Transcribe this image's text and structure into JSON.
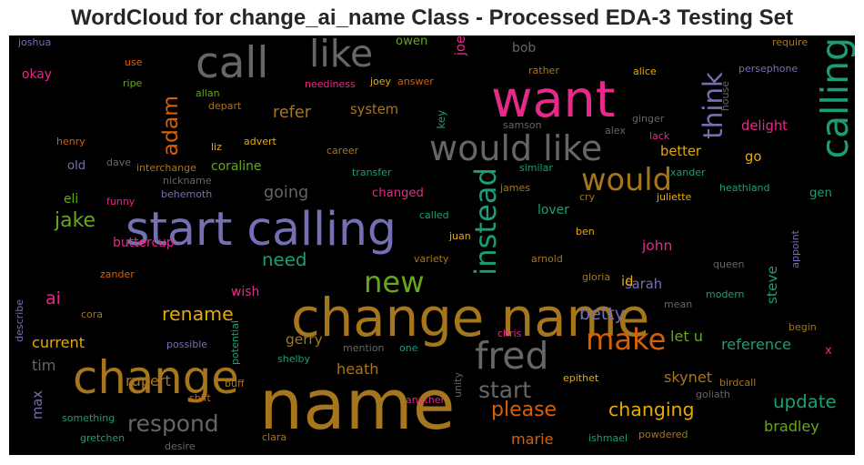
{
  "chart_data": {
    "type": "wordcloud",
    "title": "WordCloud for change_ai_name Class - Processed EDA-3 Testing Set",
    "words": [
      {
        "text": "name",
        "weight": 100,
        "color": "#a6761d",
        "vertical": false
      },
      {
        "text": "change name",
        "weight": 75,
        "color": "#a6761d",
        "vertical": false
      },
      {
        "text": "want",
        "weight": 72,
        "color": "#e7298a",
        "vertical": false
      },
      {
        "text": "start calling",
        "weight": 65,
        "color": "#7570b3",
        "vertical": false
      },
      {
        "text": "change",
        "weight": 64,
        "color": "#a6761d",
        "vertical": false
      },
      {
        "text": "call",
        "weight": 60,
        "color": "#666666",
        "vertical": false
      },
      {
        "text": "fred",
        "weight": 52,
        "color": "#666666",
        "vertical": false
      },
      {
        "text": "like",
        "weight": 52,
        "color": "#666666",
        "vertical": false
      },
      {
        "text": "calling",
        "weight": 52,
        "color": "#1b9e77",
        "vertical": true
      },
      {
        "text": "would like",
        "weight": 48,
        "color": "#666666",
        "vertical": false
      },
      {
        "text": "would",
        "weight": 42,
        "color": "#a6761d",
        "vertical": false
      },
      {
        "text": "make",
        "weight": 40,
        "color": "#d95f02",
        "vertical": false
      },
      {
        "text": "new",
        "weight": 40,
        "color": "#66a61e",
        "vertical": false
      },
      {
        "text": "instead",
        "weight": 40,
        "color": "#1b9e77",
        "vertical": true
      },
      {
        "text": "think",
        "weight": 36,
        "color": "#7570b3",
        "vertical": true
      },
      {
        "text": "respond",
        "weight": 30,
        "color": "#666666",
        "vertical": false
      },
      {
        "text": "start",
        "weight": 30,
        "color": "#666666",
        "vertical": false
      },
      {
        "text": "adam",
        "weight": 28,
        "color": "#d95f02",
        "vertical": true
      },
      {
        "text": "please",
        "weight": 26,
        "color": "#d95f02",
        "vertical": false
      },
      {
        "text": "jake",
        "weight": 26,
        "color": "#66a61e",
        "vertical": false
      },
      {
        "text": "changing",
        "weight": 24,
        "color": "#e6ab02",
        "vertical": false
      },
      {
        "text": "rename",
        "weight": 24,
        "color": "#e6ab02",
        "vertical": false
      },
      {
        "text": "update",
        "weight": 23,
        "color": "#1b9e77",
        "vertical": false
      },
      {
        "text": "need",
        "weight": 23,
        "color": "#1b9e77",
        "vertical": false
      },
      {
        "text": "betty",
        "weight": 22,
        "color": "#7570b3",
        "vertical": false
      },
      {
        "text": "ai",
        "weight": 22,
        "color": "#e7298a",
        "vertical": false
      },
      {
        "text": "refer",
        "weight": 20,
        "color": "#a6761d",
        "vertical": false
      },
      {
        "text": "going",
        "weight": 20,
        "color": "#666666",
        "vertical": false
      },
      {
        "text": "heath",
        "weight": 18,
        "color": "#a6761d",
        "vertical": false
      },
      {
        "text": "bradley",
        "weight": 18,
        "color": "#66a61e",
        "vertical": false
      },
      {
        "text": "reference",
        "weight": 18,
        "color": "#1b9e77",
        "vertical": false
      },
      {
        "text": "skynet",
        "weight": 18,
        "color": "#a6761d",
        "vertical": false
      },
      {
        "text": "rupert",
        "weight": 18,
        "color": "#a6761d",
        "vertical": false
      },
      {
        "text": "marie",
        "weight": 18,
        "color": "#d95f02",
        "vertical": false
      },
      {
        "text": "let u",
        "weight": 18,
        "color": "#66a61e",
        "vertical": false
      },
      {
        "text": "tim",
        "weight": 18,
        "color": "#666666",
        "vertical": false
      },
      {
        "text": "current",
        "weight": 18,
        "color": "#e6ab02",
        "vertical": false
      },
      {
        "text": "gerry",
        "weight": 17,
        "color": "#a6761d",
        "vertical": false
      },
      {
        "text": "steve",
        "weight": 17,
        "color": "#1b9e77",
        "vertical": true
      },
      {
        "text": "john",
        "weight": 17,
        "color": "#e7298a",
        "vertical": false
      },
      {
        "text": "sarah",
        "weight": 16,
        "color": "#7570b3",
        "vertical": false
      },
      {
        "text": "joe",
        "weight": 16,
        "color": "#e7298a",
        "vertical": true
      },
      {
        "text": "system",
        "weight": 16,
        "color": "#a6761d",
        "vertical": false
      },
      {
        "text": "delight",
        "weight": 16,
        "color": "#e7298a",
        "vertical": false
      },
      {
        "text": "better",
        "weight": 16,
        "color": "#e6ab02",
        "vertical": false
      },
      {
        "text": "id",
        "weight": 16,
        "color": "#e6ab02",
        "vertical": false
      },
      {
        "text": "go",
        "weight": 16,
        "color": "#e6ab02",
        "vertical": false
      },
      {
        "text": "coraline",
        "weight": 15,
        "color": "#66a61e",
        "vertical": false
      },
      {
        "text": "max",
        "weight": 16,
        "color": "#7570b3",
        "vertical": true
      },
      {
        "text": "buttercup",
        "weight": 15,
        "color": "#e7298a",
        "vertical": false
      },
      {
        "text": "wish",
        "weight": 15,
        "color": "#e7298a",
        "vertical": false
      },
      {
        "text": "lover",
        "weight": 15,
        "color": "#1b9e77",
        "vertical": false
      },
      {
        "text": "eli",
        "weight": 15,
        "color": "#66a61e",
        "vertical": false
      },
      {
        "text": "okay",
        "weight": 15,
        "color": "#e7298a",
        "vertical": false
      },
      {
        "text": "bob",
        "weight": 15,
        "color": "#666666",
        "vertical": false
      },
      {
        "text": "old",
        "weight": 14,
        "color": "#7570b3",
        "vertical": false
      },
      {
        "text": "owen",
        "weight": 14,
        "color": "#66a61e",
        "vertical": false
      },
      {
        "text": "changed",
        "weight": 14,
        "color": "#e7298a",
        "vertical": false
      },
      {
        "text": "gen",
        "weight": 14,
        "color": "#1b9e77",
        "vertical": false
      },
      {
        "text": "key",
        "weight": 12,
        "color": "#1b9e77",
        "vertical": true
      },
      {
        "text": "x",
        "weight": 14,
        "color": "#e7298a",
        "vertical": false
      },
      {
        "text": "joshua",
        "weight": 11,
        "color": "#7570b3",
        "vertical": false
      },
      {
        "text": "use",
        "weight": 11,
        "color": "#d95f02",
        "vertical": false
      },
      {
        "text": "ripe",
        "weight": 11,
        "color": "#66a61e",
        "vertical": false
      },
      {
        "text": "allan",
        "weight": 11,
        "color": "#66a61e",
        "vertical": false
      },
      {
        "text": "depart",
        "weight": 11,
        "color": "#a6761d",
        "vertical": false
      },
      {
        "text": "neediness",
        "weight": 11,
        "color": "#e7298a",
        "vertical": false
      },
      {
        "text": "joey",
        "weight": 11,
        "color": "#e6ab02",
        "vertical": false
      },
      {
        "text": "answer",
        "weight": 11,
        "color": "#d95f02",
        "vertical": false
      },
      {
        "text": "rather",
        "weight": 11,
        "color": "#a6761d",
        "vertical": false
      },
      {
        "text": "alice",
        "weight": 11,
        "color": "#e6ab02",
        "vertical": false
      },
      {
        "text": "require",
        "weight": 11,
        "color": "#a6761d",
        "vertical": false
      },
      {
        "text": "persephone",
        "weight": 11,
        "color": "#7570b3",
        "vertical": false
      },
      {
        "text": "house",
        "weight": 11,
        "color": "#666666",
        "vertical": true
      },
      {
        "text": "henry",
        "weight": 11,
        "color": "#d95f02",
        "vertical": false
      },
      {
        "text": "liz",
        "weight": 11,
        "color": "#e6ab02",
        "vertical": false
      },
      {
        "text": "advert",
        "weight": 11,
        "color": "#e6ab02",
        "vertical": false
      },
      {
        "text": "career",
        "weight": 11,
        "color": "#a6761d",
        "vertical": false
      },
      {
        "text": "samson",
        "weight": 11,
        "color": "#666666",
        "vertical": false
      },
      {
        "text": "ginger",
        "weight": 11,
        "color": "#666666",
        "vertical": false
      },
      {
        "text": "alex",
        "weight": 11,
        "color": "#666666",
        "vertical": false
      },
      {
        "text": "lack",
        "weight": 11,
        "color": "#e7298a",
        "vertical": false
      },
      {
        "text": "dave",
        "weight": 11,
        "color": "#666666",
        "vertical": false
      },
      {
        "text": "interchange",
        "weight": 11,
        "color": "#a6761d",
        "vertical": false
      },
      {
        "text": "transfer",
        "weight": 11,
        "color": "#1b9e77",
        "vertical": false
      },
      {
        "text": "similar",
        "weight": 11,
        "color": "#1b9e77",
        "vertical": false
      },
      {
        "text": "xander",
        "weight": 11,
        "color": "#1b9e77",
        "vertical": false
      },
      {
        "text": "nickname",
        "weight": 11,
        "color": "#666666",
        "vertical": false
      },
      {
        "text": "behemoth",
        "weight": 11,
        "color": "#7570b3",
        "vertical": false
      },
      {
        "text": "funny",
        "weight": 11,
        "color": "#e7298a",
        "vertical": false
      },
      {
        "text": "james",
        "weight": 11,
        "color": "#a6761d",
        "vertical": false
      },
      {
        "text": "cry",
        "weight": 11,
        "color": "#a6761d",
        "vertical": false
      },
      {
        "text": "juliette",
        "weight": 11,
        "color": "#e6ab02",
        "vertical": false
      },
      {
        "text": "heathland",
        "weight": 11,
        "color": "#1b9e77",
        "vertical": false
      },
      {
        "text": "called",
        "weight": 11,
        "color": "#1b9e77",
        "vertical": false
      },
      {
        "text": "ben",
        "weight": 11,
        "color": "#e6ab02",
        "vertical": false
      },
      {
        "text": "juan",
        "weight": 11,
        "color": "#e6ab02",
        "vertical": false
      },
      {
        "text": "variety",
        "weight": 11,
        "color": "#a6761d",
        "vertical": false
      },
      {
        "text": "arnold",
        "weight": 11,
        "color": "#a6761d",
        "vertical": false
      },
      {
        "text": "gloria",
        "weight": 11,
        "color": "#a6761d",
        "vertical": false
      },
      {
        "text": "queen",
        "weight": 11,
        "color": "#666666",
        "vertical": false
      },
      {
        "text": "appoint",
        "weight": 11,
        "color": "#7570b3",
        "vertical": true
      },
      {
        "text": "zander",
        "weight": 11,
        "color": "#d95f02",
        "vertical": false
      },
      {
        "text": "mean",
        "weight": 11,
        "color": "#666666",
        "vertical": false
      },
      {
        "text": "modern",
        "weight": 11,
        "color": "#1b9e77",
        "vertical": false
      },
      {
        "text": "cora",
        "weight": 11,
        "color": "#a6761d",
        "vertical": false
      },
      {
        "text": "possible",
        "weight": 11,
        "color": "#7570b3",
        "vertical": false
      },
      {
        "text": "potential",
        "weight": 11,
        "color": "#1b9e77",
        "vertical": true
      },
      {
        "text": "mention",
        "weight": 11,
        "color": "#666666",
        "vertical": false
      },
      {
        "text": "one",
        "weight": 11,
        "color": "#1b9e77",
        "vertical": false
      },
      {
        "text": "chris",
        "weight": 11,
        "color": "#e7298a",
        "vertical": false
      },
      {
        "text": "begin",
        "weight": 11,
        "color": "#a6761d",
        "vertical": false
      },
      {
        "text": "describe",
        "weight": 11,
        "color": "#7570b3",
        "vertical": true
      },
      {
        "text": "shelby",
        "weight": 11,
        "color": "#1b9e77",
        "vertical": false
      },
      {
        "text": "buff",
        "weight": 11,
        "color": "#a6761d",
        "vertical": false
      },
      {
        "text": "unity",
        "weight": 11,
        "color": "#666666",
        "vertical": true
      },
      {
        "text": "epithet",
        "weight": 11,
        "color": "#e6ab02",
        "vertical": false
      },
      {
        "text": "birdcall",
        "weight": 11,
        "color": "#a6761d",
        "vertical": false
      },
      {
        "text": "goliath",
        "weight": 11,
        "color": "#666666",
        "vertical": false
      },
      {
        "text": "shift",
        "weight": 11,
        "color": "#d95f02",
        "vertical": false
      },
      {
        "text": "another",
        "weight": 11,
        "color": "#e7298a",
        "vertical": false
      },
      {
        "text": "something",
        "weight": 11,
        "color": "#1b9e77",
        "vertical": false
      },
      {
        "text": "ishmael",
        "weight": 11,
        "color": "#1b9e77",
        "vertical": false
      },
      {
        "text": "powdered",
        "weight": 11,
        "color": "#a6761d",
        "vertical": false
      },
      {
        "text": "gretchen",
        "weight": 11,
        "color": "#1b9e77",
        "vertical": false
      },
      {
        "text": "clara",
        "weight": 11,
        "color": "#a6761d",
        "vertical": false
      },
      {
        "text": "desire",
        "weight": 11,
        "color": "#666666",
        "vertical": false
      }
    ]
  }
}
